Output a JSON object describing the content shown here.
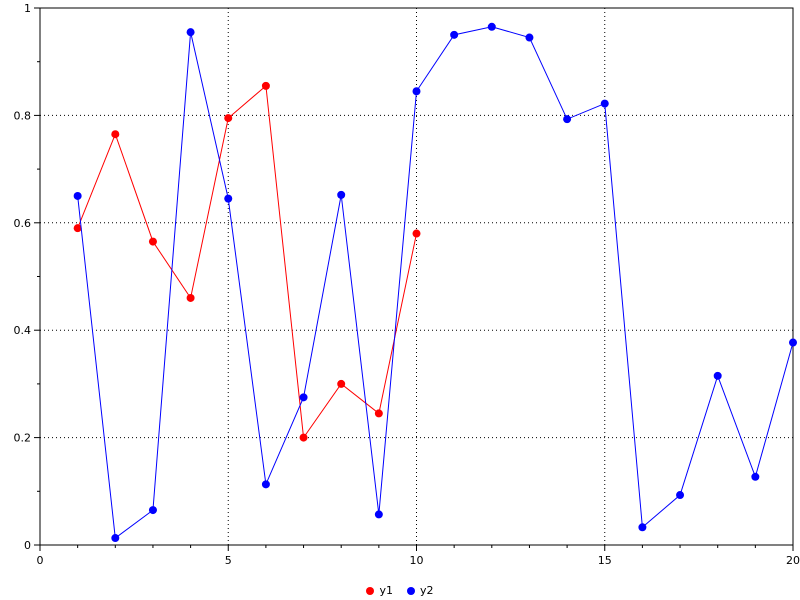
{
  "figure": {
    "background": "#ffffff",
    "frame_color": "#000000",
    "text_color": "#000000"
  },
  "chart_data": {
    "type": "line",
    "title": "",
    "xlabel": "",
    "ylabel": "",
    "xlim": [
      0,
      20
    ],
    "ylim": [
      0,
      1
    ],
    "xticks": [
      0,
      5,
      10,
      15,
      20
    ],
    "xtick_labels": [
      "0",
      "5",
      "10",
      "15",
      "20"
    ],
    "yticks": [
      0,
      0.2,
      0.4,
      0.6,
      0.8,
      1
    ],
    "ytick_labels": [
      "0",
      "0.2",
      "0.4",
      "0.6",
      "0.8",
      "1"
    ],
    "x_minor_step": 1,
    "y_minor_step": 0.1,
    "grid": true,
    "grid_style": "dotted",
    "legend_position": "bottom-center",
    "series": [
      {
        "name": "y1",
        "color": "#ff0000",
        "marker": "circle",
        "x": [
          1,
          2,
          3,
          4,
          5,
          6,
          7,
          8,
          9,
          10
        ],
        "values": [
          0.59,
          0.765,
          0.565,
          0.46,
          0.795,
          0.855,
          0.2,
          0.3,
          0.245,
          0.58
        ]
      },
      {
        "name": "y2",
        "color": "#0000ff",
        "marker": "circle",
        "x": [
          1,
          2,
          3,
          4,
          5,
          6,
          7,
          8,
          9,
          10,
          11,
          12,
          13,
          14,
          15,
          16,
          17,
          18,
          19,
          20
        ],
        "values": [
          0.65,
          0.013,
          0.065,
          0.955,
          0.645,
          0.113,
          0.275,
          0.652,
          0.057,
          0.845,
          0.95,
          0.965,
          0.945,
          0.793,
          0.822,
          0.033,
          0.093,
          0.315,
          0.127,
          0.377
        ]
      }
    ]
  },
  "legend": {
    "items": [
      {
        "label": "y1",
        "color": "#ff0000"
      },
      {
        "label": "y2",
        "color": "#0000ff"
      }
    ]
  }
}
